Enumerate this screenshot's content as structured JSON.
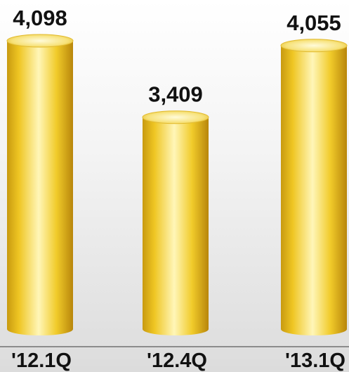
{
  "chart_data": {
    "type": "bar",
    "categories": [
      "'12.1Q",
      "'12.4Q",
      "'13.1Q"
    ],
    "values": [
      4098,
      3409,
      4055
    ],
    "data_labels": [
      "4,098",
      "3,409",
      "4,055"
    ],
    "title": "",
    "xlabel": "",
    "ylabel": "",
    "grid": false,
    "colors": {
      "bar_light": "#fff3b0",
      "bar_mid": "#f2cf2a",
      "bar_dark": "#b8860b",
      "baseline": "#8c8c8c"
    }
  }
}
